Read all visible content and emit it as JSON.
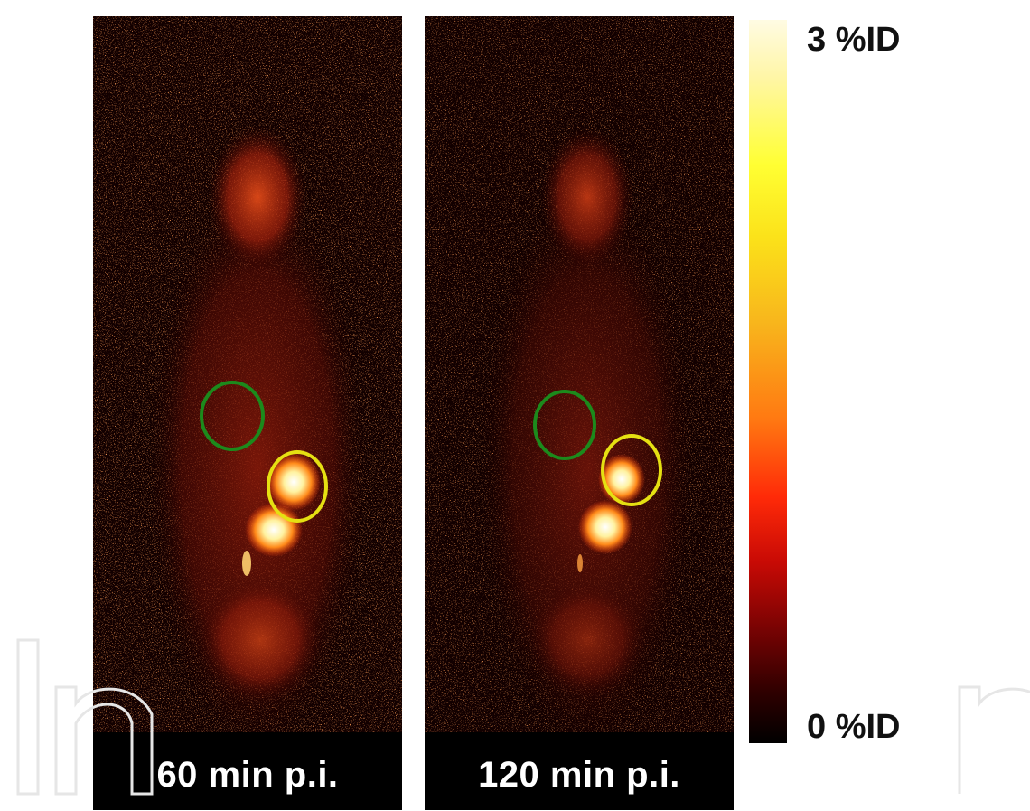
{
  "panels": [
    {
      "caption": "60 min p.i.",
      "region_colors": {
        "green": "#1c8a1c",
        "yellow": "#e5e012"
      }
    },
    {
      "caption": "120 min p.i.",
      "region_colors": {
        "green": "#1c8a1c",
        "yellow": "#e5e012"
      }
    }
  ],
  "colorbar": {
    "max_label": "3 %ID",
    "min_label": "0 %ID",
    "colormap": "hot"
  }
}
